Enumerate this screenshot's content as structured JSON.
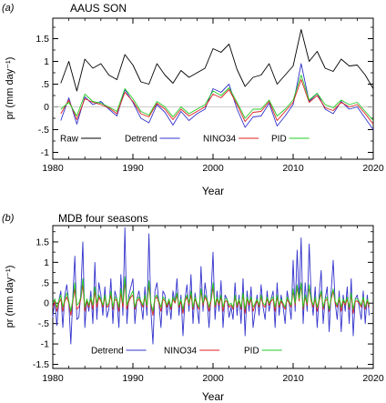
{
  "chart_data": [
    {
      "panel_label": "(a)",
      "title": "AAUS SON",
      "type": "line",
      "xlabel": "Year",
      "ylabel": "pr (mm day⁻¹)",
      "xlim": [
        1980,
        2020
      ],
      "ylim": [
        -1.15,
        1.95
      ],
      "xticks": [
        1980,
        1990,
        2000,
        2010,
        2020
      ],
      "yticks": [
        -1,
        -0.5,
        0,
        0.5,
        1,
        1.5
      ],
      "zero_line": true,
      "grid": false,
      "legend_position": "bottom",
      "x": [
        1981,
        1982,
        1983,
        1984,
        1985,
        1986,
        1987,
        1988,
        1989,
        1990,
        1991,
        1992,
        1993,
        1994,
        1995,
        1996,
        1997,
        1998,
        1999,
        2000,
        2001,
        2002,
        2003,
        2004,
        2005,
        2006,
        2007,
        2008,
        2009,
        2010,
        2011,
        2012,
        2013,
        2014,
        2015,
        2016,
        2017,
        2018,
        2019,
        2020
      ],
      "series": [
        {
          "name": "Raw",
          "color": "#000000",
          "values": [
            0.52,
            1.0,
            0.35,
            1.05,
            0.85,
            0.95,
            0.7,
            0.6,
            1.15,
            0.92,
            0.55,
            0.5,
            0.95,
            0.7,
            0.52,
            0.8,
            0.65,
            0.75,
            0.85,
            1.28,
            1.2,
            1.38,
            0.82,
            0.45,
            0.65,
            0.7,
            0.95,
            0.5,
            0.7,
            0.9,
            1.7,
            1.0,
            1.22,
            0.85,
            0.78,
            1.05,
            0.9,
            0.92,
            0.7,
            0.4
          ]
        },
        {
          "name": "Detrend",
          "color": "#3333cc",
          "values": [
            -0.3,
            0.2,
            -0.38,
            0.22,
            0.05,
            0.12,
            -0.05,
            -0.2,
            0.38,
            0.1,
            -0.25,
            -0.35,
            0.05,
            -0.12,
            -0.4,
            -0.1,
            -0.3,
            -0.15,
            -0.05,
            0.4,
            0.32,
            0.5,
            -0.05,
            -0.45,
            -0.22,
            -0.2,
            0.08,
            -0.42,
            -0.2,
            0.05,
            0.95,
            0.12,
            0.3,
            -0.05,
            -0.15,
            0.12,
            -0.05,
            0.0,
            -0.25,
            -0.5
          ]
        },
        {
          "name": "NINO34",
          "color": "#dd2222",
          "values": [
            -0.15,
            0.15,
            -0.28,
            0.18,
            0.1,
            0.05,
            -0.02,
            -0.15,
            0.32,
            0.12,
            -0.15,
            -0.22,
            0.08,
            -0.05,
            -0.28,
            -0.05,
            -0.2,
            -0.1,
            0.0,
            0.28,
            0.2,
            0.38,
            0.05,
            -0.32,
            -0.12,
            -0.1,
            0.12,
            -0.3,
            -0.1,
            0.1,
            0.6,
            0.1,
            0.25,
            -0.02,
            -0.08,
            0.1,
            0.0,
            0.05,
            -0.15,
            -0.38
          ]
        },
        {
          "name": "PID",
          "color": "#22cc22",
          "values": [
            -0.05,
            0.1,
            -0.2,
            0.28,
            0.12,
            0.08,
            0.0,
            -0.1,
            0.4,
            0.18,
            -0.1,
            -0.18,
            0.12,
            0.0,
            -0.22,
            0.0,
            -0.15,
            -0.05,
            0.05,
            0.35,
            0.25,
            0.42,
            0.1,
            -0.25,
            -0.05,
            -0.05,
            0.15,
            -0.2,
            -0.05,
            0.15,
            0.7,
            0.15,
            0.3,
            0.05,
            -0.02,
            0.15,
            0.05,
            0.1,
            -0.1,
            -0.3
          ]
        }
      ]
    },
    {
      "panel_label": "(b)",
      "title": "MDB four seasons",
      "type": "line",
      "xlabel": "Year",
      "ylabel": "pr (mm day⁻¹)",
      "xlim": [
        1980,
        2020
      ],
      "ylim": [
        -1.6,
        1.9
      ],
      "xticks": [
        1980,
        1990,
        2000,
        2010,
        2020
      ],
      "yticks": [
        -1.5,
        -1,
        -0.5,
        0,
        0.5,
        1,
        1.5
      ],
      "zero_line": false,
      "grid": false,
      "legend_position": "bottom",
      "x_start": 1980,
      "x_step": 0.25,
      "series": [
        {
          "name": "Detrend",
          "color": "#3333cc",
          "values": [
            -0.35,
            0.1,
            -0.55,
            0.05,
            0.3,
            -0.6,
            0.2,
            0.45,
            0.0,
            -1.0,
            0.15,
            1.15,
            -0.4,
            -0.35,
            0.25,
            1.5,
            -0.6,
            0.1,
            -0.2,
            0.3,
            -0.5,
            1.0,
            -0.4,
            0.5,
            0.2,
            -0.3,
            0.4,
            -0.35,
            -0.15,
            0.6,
            -0.5,
            0.3,
            0.1,
            -0.6,
            0.7,
            -0.3,
            1.85,
            -0.5,
            0.2,
            0.4,
            0.6,
            -0.5,
            0.1,
            0.3,
            0.0,
            -0.4,
            0.4,
            -0.3,
            1.7,
            -0.2,
            -1.0,
            0.3,
            0.5,
            0.0,
            -0.6,
            0.3,
            0.2,
            -0.3,
            0.1,
            -0.4,
            0.3,
            0.0,
            0.6,
            -0.3,
            0.2,
            -0.8,
            0.1,
            0.45,
            -0.2,
            0.7,
            -0.5,
            0.25,
            -0.1,
            -0.5,
            0.9,
            -0.2,
            0.5,
            0.1,
            -0.6,
            0.2,
            1.25,
            -0.4,
            0.3,
            -0.2,
            0.55,
            -0.6,
            0.2,
            0.1,
            -0.35,
            -0.1,
            -0.4,
            0.5,
            -0.3,
            0.2,
            -0.5,
            0.6,
            -0.8,
            0.3,
            -0.2,
            0.4,
            -0.6,
            -0.2,
            0.2,
            -0.3,
            0.45,
            -0.1,
            -0.4,
            0.3,
            -0.2,
            0.1,
            0.3,
            -0.6,
            0.5,
            -0.3,
            0.2,
            -0.1,
            -0.5,
            0.3,
            0.0,
            -0.4,
            1.05,
            -0.2,
            1.3,
            0.1,
            1.6,
            -0.5,
            0.5,
            -0.2,
            1.45,
            0.2,
            -0.3,
            0.4,
            -0.6,
            0.2,
            0.8,
            -0.5,
            0.1,
            0.4,
            -0.7,
            0.3,
            1.05,
            0.0,
            -0.4,
            0.3,
            -0.7,
            0.2,
            -0.2,
            0.4,
            -0.5,
            0.6,
            -0.8,
            0.1,
            0.2,
            -0.1,
            -0.4,
            0.3,
            -0.5,
            0.2,
            -0.3
          ]
        },
        {
          "name": "NINO34",
          "color": "#dd2222",
          "values": [
            -0.1,
            0.05,
            -0.2,
            0.0,
            0.1,
            -0.2,
            0.05,
            0.15,
            0.0,
            -0.3,
            0.05,
            0.35,
            -0.15,
            -0.1,
            0.1,
            0.45,
            -0.2,
            0.05,
            -0.1,
            0.1,
            -0.15,
            0.3,
            -0.1,
            0.15,
            0.05,
            -0.1,
            0.15,
            -0.1,
            -0.05,
            0.2,
            -0.15,
            0.1,
            0.05,
            -0.2,
            0.25,
            -0.1,
            0.55,
            -0.15,
            0.05,
            0.15,
            0.2,
            -0.15,
            0.05,
            0.1,
            0.0,
            -0.1,
            0.15,
            -0.1,
            0.45,
            -0.05,
            -0.3,
            0.1,
            0.15,
            0.0,
            -0.2,
            0.1,
            0.05,
            -0.1,
            0.05,
            -0.15,
            0.1,
            0.0,
            0.2,
            -0.1,
            0.05,
            -0.25,
            0.05,
            0.15,
            -0.05,
            0.2,
            -0.15,
            0.1,
            -0.05,
            -0.15,
            0.3,
            -0.05,
            0.15,
            0.05,
            -0.2,
            0.05,
            0.4,
            -0.1,
            0.1,
            -0.05,
            0.15,
            -0.2,
            0.05,
            0.05,
            -0.1,
            -0.05,
            -0.15,
            0.15,
            -0.1,
            0.05,
            -0.15,
            0.2,
            -0.25,
            0.1,
            -0.05,
            0.1,
            -0.2,
            -0.05,
            0.05,
            -0.1,
            0.15,
            -0.05,
            -0.1,
            0.1,
            -0.05,
            0.05,
            0.1,
            -0.2,
            0.15,
            -0.1,
            0.05,
            -0.05,
            -0.15,
            0.1,
            0.0,
            -0.1,
            0.3,
            -0.05,
            0.4,
            0.05,
            0.45,
            -0.15,
            0.15,
            -0.05,
            0.4,
            0.05,
            -0.1,
            0.1,
            -0.2,
            0.05,
            0.25,
            -0.15,
            0.05,
            0.1,
            -0.2,
            0.1,
            0.3,
            0.0,
            -0.1,
            0.1,
            -0.2,
            0.05,
            -0.05,
            0.1,
            -0.15,
            0.2,
            -0.25,
            0.05,
            0.05,
            0.0,
            -0.1,
            0.1,
            -0.15,
            0.05,
            -0.1
          ]
        },
        {
          "name": "PID",
          "color": "#22cc22",
          "values": [
            0.0,
            0.1,
            -0.1,
            0.05,
            0.2,
            -0.1,
            0.1,
            0.25,
            0.05,
            -0.2,
            0.1,
            0.5,
            -0.05,
            0.0,
            0.15,
            0.6,
            -0.1,
            0.1,
            -0.05,
            0.15,
            -0.05,
            0.4,
            0.0,
            0.2,
            0.1,
            -0.05,
            0.2,
            -0.05,
            0.0,
            0.3,
            -0.1,
            0.15,
            0.1,
            -0.1,
            0.35,
            0.0,
            0.65,
            -0.05,
            0.1,
            0.2,
            0.3,
            -0.1,
            0.1,
            0.15,
            0.05,
            -0.05,
            0.2,
            -0.05,
            0.55,
            0.0,
            -0.2,
            0.15,
            0.2,
            0.05,
            -0.1,
            0.15,
            0.1,
            -0.05,
            0.1,
            -0.1,
            0.15,
            0.05,
            0.25,
            -0.05,
            0.1,
            -0.15,
            0.1,
            0.2,
            0.0,
            0.3,
            -0.1,
            0.15,
            0.0,
            -0.1,
            0.35,
            0.0,
            0.2,
            0.1,
            -0.1,
            0.1,
            0.5,
            -0.05,
            0.15,
            0.0,
            0.2,
            -0.1,
            0.1,
            0.1,
            -0.05,
            0.0,
            -0.1,
            0.2,
            -0.05,
            0.1,
            -0.1,
            0.25,
            -0.15,
            0.15,
            0.0,
            0.15,
            -0.1,
            0.0,
            0.1,
            -0.05,
            0.2,
            0.0,
            -0.05,
            0.15,
            0.0,
            0.1,
            0.15,
            -0.1,
            0.2,
            -0.05,
            0.1,
            0.0,
            -0.1,
            0.15,
            0.05,
            -0.05,
            0.35,
            0.0,
            0.45,
            0.1,
            0.5,
            -0.1,
            0.2,
            0.0,
            0.45,
            0.1,
            -0.05,
            0.15,
            -0.1,
            0.1,
            0.3,
            -0.1,
            0.1,
            0.15,
            -0.15,
            0.15,
            0.35,
            0.05,
            -0.05,
            0.15,
            -0.1,
            0.1,
            0.0,
            0.15,
            -0.1,
            0.25,
            -0.15,
            0.1,
            0.1,
            0.05,
            -0.05,
            0.15,
            -0.1,
            0.1,
            -0.05
          ]
        }
      ]
    }
  ]
}
